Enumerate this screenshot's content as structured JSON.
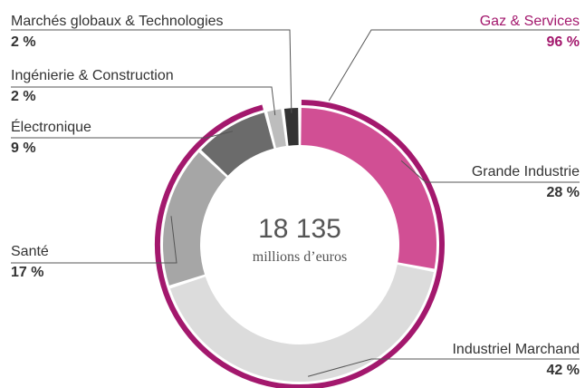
{
  "chart_data": {
    "type": "pie",
    "center_label": "18 135",
    "center_sublabel": "millions d’euros",
    "categories": [
      "Grande Industrie",
      "Industriel Marchand",
      "Santé",
      "Électronique",
      "Ingénierie & Construction",
      "Marchés globaux & Technologies"
    ],
    "values": [
      28,
      42,
      17,
      9,
      2,
      2
    ],
    "value_labels": [
      "28 %",
      "42 %",
      "17 %",
      "9 %",
      "2 %",
      "2 %"
    ],
    "colors": [
      "#d14f94",
      "#dcdcdc",
      "#a6a6a6",
      "#6b6b6b",
      "#bdbdbd",
      "#333333"
    ],
    "ring": {
      "name": "Gaz & Services",
      "value": 96,
      "value_label": "96 %",
      "color": "#a3186d"
    }
  }
}
